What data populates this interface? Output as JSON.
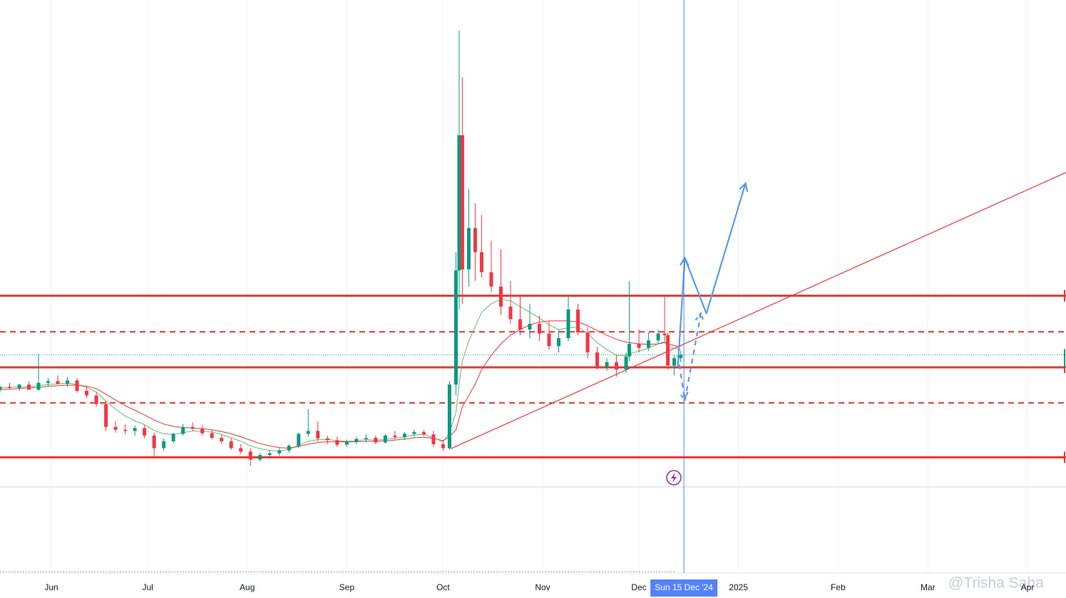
{
  "chart_data": {
    "type": "candlestick",
    "watermark": "@Trisha Saha",
    "xlim": [
      0,
      332
    ],
    "ylim": [
      0,
      100
    ],
    "xticks": [
      {
        "value": 16,
        "label": "Jun"
      },
      {
        "value": 46,
        "label": "Jul"
      },
      {
        "value": 77,
        "label": "Aug"
      },
      {
        "value": 108,
        "label": "Sep"
      },
      {
        "value": 138,
        "label": "Oct"
      },
      {
        "value": 169,
        "label": "Nov"
      },
      {
        "value": 199,
        "label": "Dec"
      },
      {
        "value": 230,
        "label": "2025"
      },
      {
        "value": 261,
        "label": "Feb"
      },
      {
        "value": 289,
        "label": "Mar"
      },
      {
        "value": 320,
        "label": "Apr"
      }
    ],
    "grid": true,
    "up_color": "#089981",
    "down_color": "#f23645",
    "x": [
      0,
      3,
      6,
      9,
      12,
      15,
      18,
      21,
      24,
      27,
      30,
      33,
      36,
      39,
      42,
      45,
      48,
      51,
      54,
      57,
      60,
      63,
      66,
      69,
      72,
      75,
      78,
      81,
      84,
      87,
      90,
      93,
      96,
      99,
      102,
      105,
      108,
      111,
      114,
      117,
      120,
      123,
      126,
      129,
      132,
      135,
      138,
      140,
      142,
      143,
      144,
      146,
      148,
      150,
      153,
      156,
      159,
      162,
      165,
      168,
      171,
      174,
      177,
      180,
      183,
      186,
      189,
      192,
      195,
      196,
      199,
      202,
      205,
      207,
      208,
      210,
      212
    ],
    "open": [
      32.0,
      32.5,
      32.3,
      32.9,
      32.0,
      33.2,
      33.5,
      33.0,
      33.6,
      31.8,
      31.0,
      29.5,
      25.5,
      25.0,
      24.8,
      25.3,
      24.0,
      21.8,
      23.0,
      24.3,
      25.5,
      25.2,
      24.4,
      23.6,
      23.0,
      21.8,
      21.2,
      19.8,
      20.6,
      20.9,
      21.4,
      22.2,
      24.3,
      24.8,
      23.5,
      23.2,
      22.4,
      22.9,
      23.4,
      23.6,
      22.8,
      24.0,
      23.7,
      24.3,
      24.6,
      24.2,
      22.5,
      21.8,
      32.9,
      52.8,
      76.4,
      53.0,
      60.2,
      56.0,
      52.5,
      50.0,
      46.5,
      44.3,
      42.5,
      43.5,
      41.8,
      39.6,
      41.0,
      46.0,
      42.0,
      38.5,
      36.0,
      36.8,
      35.5,
      37.8,
      40.0,
      39.3,
      40.6,
      41.8,
      41.5,
      36.2,
      37.5
    ],
    "high": [
      32.8,
      33.2,
      33.0,
      33.5,
      38.3,
      34.0,
      34.5,
      34.2,
      34.0,
      32.5,
      31.5,
      30.0,
      26.5,
      26.0,
      25.8,
      25.8,
      24.5,
      23.5,
      24.5,
      26.0,
      26.3,
      25.8,
      25.0,
      24.2,
      23.5,
      22.5,
      21.8,
      21.0,
      21.5,
      21.8,
      22.5,
      24.5,
      28.6,
      26.5,
      24.0,
      23.8,
      23.3,
      23.8,
      24.2,
      24.0,
      24.3,
      24.8,
      24.6,
      25.0,
      25.0,
      24.8,
      23.0,
      33.5,
      56.0,
      94.7,
      86.5,
      67.0,
      64.5,
      62.5,
      58.0,
      56.5,
      51.0,
      48.5,
      47.0,
      45.0,
      44.0,
      42.5,
      48.5,
      47.0,
      43.0,
      39.5,
      37.5,
      38.0,
      38.5,
      50.9,
      42.5,
      42.0,
      42.5,
      48.3,
      42.0,
      38.0,
      38.8
    ],
    "low": [
      31.5,
      32.0,
      31.8,
      32.4,
      31.8,
      32.6,
      33.0,
      32.5,
      31.5,
      30.5,
      29.0,
      24.8,
      24.5,
      24.2,
      24.0,
      23.5,
      20.0,
      21.3,
      22.6,
      24.0,
      24.8,
      24.0,
      23.3,
      22.5,
      21.5,
      20.8,
      18.7,
      19.5,
      20.2,
      20.5,
      21.0,
      21.8,
      23.8,
      23.0,
      22.5,
      22.0,
      22.0,
      22.5,
      22.8,
      22.5,
      22.6,
      23.3,
      23.2,
      23.8,
      23.9,
      22.0,
      21.3,
      21.5,
      31.0,
      46.0,
      47.0,
      50.0,
      51.0,
      51.5,
      49.0,
      45.0,
      43.5,
      41.5,
      41.0,
      40.5,
      39.0,
      38.5,
      40.5,
      41.5,
      37.5,
      35.5,
      35.3,
      34.3,
      35.0,
      37.0,
      38.5,
      38.8,
      40.0,
      40.5,
      35.5,
      34.5,
      36.8
    ],
    "close": [
      32.5,
      32.3,
      32.9,
      32.0,
      33.2,
      33.5,
      33.0,
      33.6,
      31.8,
      31.0,
      29.5,
      25.5,
      25.0,
      24.8,
      25.3,
      24.0,
      21.8,
      23.0,
      24.3,
      25.5,
      25.2,
      24.4,
      23.6,
      23.0,
      21.8,
      21.2,
      19.8,
      20.6,
      20.9,
      21.4,
      22.2,
      24.3,
      24.8,
      23.5,
      23.2,
      22.4,
      22.9,
      23.4,
      23.6,
      22.8,
      24.0,
      23.7,
      24.3,
      24.6,
      24.2,
      22.5,
      21.8,
      32.9,
      52.8,
      76.4,
      53.0,
      60.2,
      56.0,
      52.5,
      50.0,
      46.5,
      44.3,
      42.5,
      43.5,
      41.8,
      39.6,
      41.0,
      46.0,
      42.0,
      38.5,
      36.0,
      36.8,
      35.5,
      37.8,
      40.0,
      39.3,
      40.6,
      41.8,
      41.5,
      36.2,
      37.5,
      38.1
    ],
    "moving_averages": [
      {
        "color": "#66bb6a",
        "values": [
          32.3,
          32.4,
          32.5,
          32.5,
          32.7,
          32.9,
          33.0,
          33.2,
          32.9,
          32.4,
          31.6,
          30.0,
          28.6,
          27.4,
          26.6,
          25.9,
          24.9,
          24.3,
          24.2,
          24.5,
          24.8,
          24.8,
          24.6,
          24.2,
          23.6,
          23.0,
          22.2,
          21.7,
          21.4,
          21.3,
          21.6,
          22.3,
          23.0,
          23.3,
          23.3,
          23.1,
          23.0,
          23.1,
          23.3,
          23.2,
          23.4,
          23.5,
          23.8,
          24.1,
          24.2,
          23.6,
          22.9,
          24.5,
          28.0,
          33.0,
          37.0,
          40.5,
          43.0,
          45.5,
          47.0,
          47.8,
          47.5,
          46.5,
          45.5,
          44.5,
          43.3,
          42.5,
          42.8,
          43.0,
          41.8,
          40.2,
          39.0,
          38.0,
          38.0,
          38.3,
          38.7,
          39.3,
          40.0,
          40.4,
          39.6,
          39.2,
          39.0
        ]
      },
      {
        "color": "#e53935",
        "values": [
          32.0,
          32.1,
          32.2,
          32.3,
          32.4,
          32.6,
          32.7,
          32.8,
          32.8,
          32.6,
          32.2,
          31.2,
          30.2,
          29.2,
          28.4,
          27.6,
          26.7,
          26.0,
          25.6,
          25.4,
          25.3,
          25.2,
          25.0,
          24.7,
          24.3,
          23.8,
          23.2,
          22.6,
          22.2,
          21.9,
          21.8,
          22.1,
          22.5,
          22.8,
          22.9,
          22.9,
          22.9,
          22.9,
          23.0,
          23.0,
          23.1,
          23.2,
          23.4,
          23.6,
          23.7,
          23.5,
          23.1,
          23.8,
          25.0,
          27.0,
          29.0,
          31.0,
          33.0,
          35.5,
          38.0,
          40.0,
          41.5,
          42.5,
          43.3,
          43.8,
          44.0,
          44.0,
          44.0,
          43.8,
          43.2,
          42.3,
          41.5,
          40.8,
          40.3,
          40.2,
          40.0,
          39.9,
          40.0,
          40.2,
          40.0,
          39.7,
          39.5
        ]
      }
    ],
    "levels": [
      {
        "value": 48.4,
        "style": "solid",
        "color": "#e53935"
      },
      {
        "value": 42.1,
        "style": "dashed",
        "color": "#e53935"
      },
      {
        "value": 35.9,
        "style": "solid",
        "color": "#e53935"
      },
      {
        "value": 29.7,
        "style": "dashed",
        "color": "#e53935"
      },
      {
        "value": 20.2,
        "style": "solid",
        "color": "#e53935"
      }
    ],
    "last_price": {
      "value": 38.1,
      "color": "#089981"
    },
    "trendlines": [
      {
        "points": [
          [
            140.4,
            21.7
          ],
          [
            332,
            69.9
          ]
        ],
        "color": "#e53935"
      }
    ],
    "drawings": [
      {
        "style": "solid",
        "color": "#5b9be6",
        "points": [
          [
            211.1,
            36.0
          ],
          [
            213.3,
            55.0
          ]
        ]
      },
      {
        "style": "solid",
        "color": "#5b9be6",
        "points": [
          [
            213.3,
            55.0
          ],
          [
            220,
            45.3
          ],
          [
            232.2,
            68.0
          ]
        ]
      },
      {
        "style": "dashed",
        "color": "#5b9be6",
        "points": [
          [
            211.1,
            38.0
          ],
          [
            213.3,
            30.2
          ]
        ]
      },
      {
        "style": "dashed",
        "color": "#5b9be6",
        "points": [
          [
            213.3,
            30.2
          ],
          [
            218.3,
            45.3
          ]
        ]
      }
    ],
    "crosshair": {
      "x": 213,
      "label": "Sun 15 Dec '24",
      "color": "#2962ff"
    }
  }
}
